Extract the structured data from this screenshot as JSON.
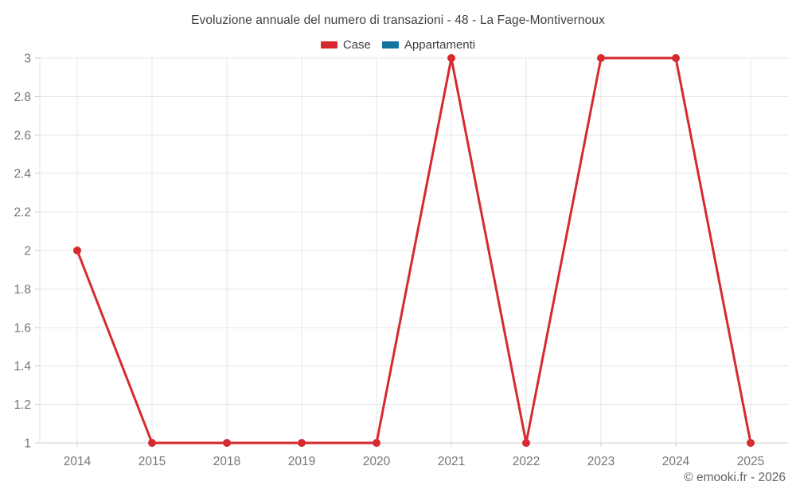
{
  "title": "Evoluzione annuale del numero di transazioni - 48 - La Fage-Montivernoux",
  "legend": {
    "items": [
      {
        "label": "Case",
        "color": "#d62a2e"
      },
      {
        "label": "Appartamenti",
        "color": "#12739f"
      }
    ]
  },
  "copyright": "© emooki.fr - 2026",
  "colors": {
    "gridline": "#e6e6e6",
    "axis": "#cccccc",
    "tick": "#c9c9c9",
    "tick_label": "#757575"
  },
  "chart_data": {
    "type": "line",
    "title": "Evoluzione annuale del numero di transazioni - 48 - La Fage-Montivernoux",
    "categories": [
      "2014",
      "2015",
      "2018",
      "2019",
      "2020",
      "2021",
      "2022",
      "2023",
      "2024",
      "2025"
    ],
    "series": [
      {
        "name": "Case",
        "color": "#d62a2e",
        "values": [
          2,
          1,
          1,
          1,
          1,
          3,
          1,
          3,
          3,
          1
        ]
      },
      {
        "name": "Appartamenti",
        "color": "#12739f",
        "values": []
      }
    ],
    "xlabel": "",
    "ylabel": "",
    "ylim": [
      1,
      3
    ],
    "ytick_labels": [
      "1",
      "1.2",
      "1.4",
      "1.6",
      "1.8",
      "2",
      "2.2",
      "2.4",
      "2.6",
      "2.8",
      "3"
    ],
    "grid": true,
    "legend_position": "top",
    "marker": "circle"
  }
}
